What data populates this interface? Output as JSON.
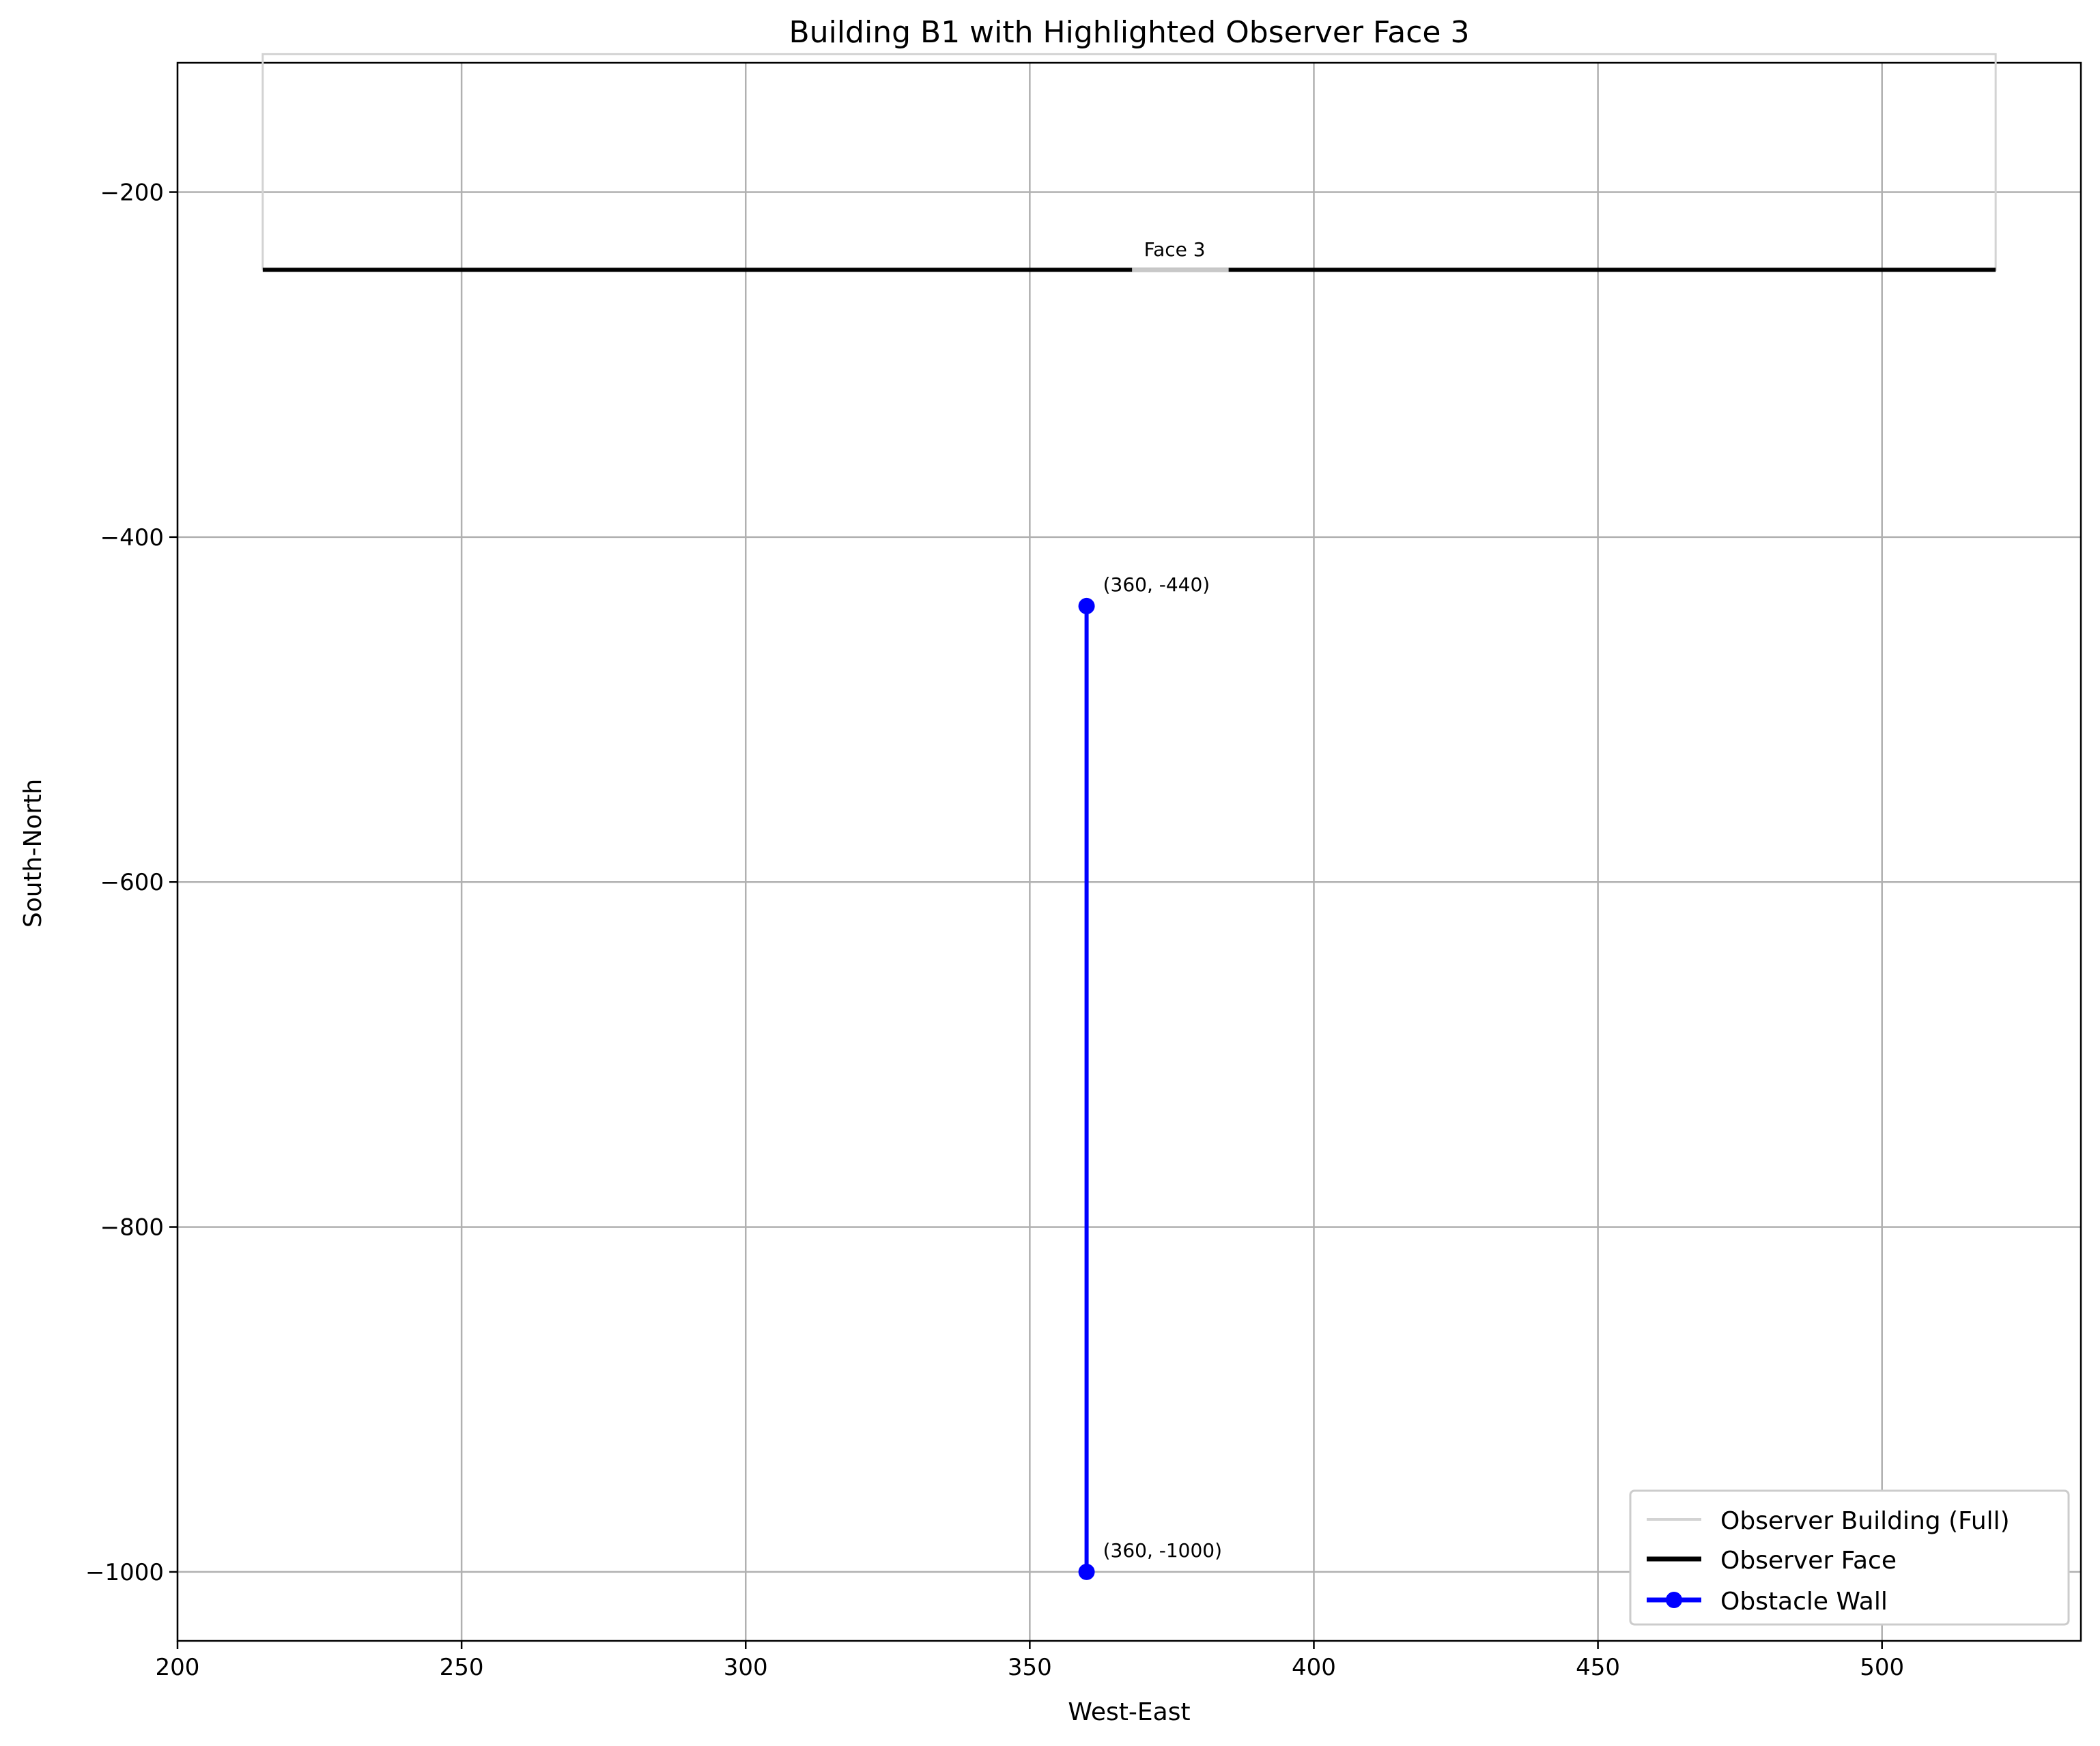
{
  "chart_data": {
    "type": "line",
    "title": "Building B1 with Highlighted Observer Face 3",
    "xlabel": "West-East",
    "ylabel": "South-North",
    "xlim": [
      200,
      535
    ],
    "ylim": [
      -1040,
      -125
    ],
    "xticks": [
      200,
      250,
      300,
      350,
      400,
      450,
      500
    ],
    "yticks": [
      -200,
      -400,
      -600,
      -800,
      -1000
    ],
    "grid": true,
    "legend_position": "lower right",
    "series": [
      {
        "name": "Observer Building (Full)",
        "color": "#d3d3d3",
        "points": [
          [
            215,
            -245
          ],
          [
            215,
            -120
          ],
          [
            520,
            -120
          ],
          [
            520,
            -245
          ],
          [
            215,
            -245
          ]
        ]
      },
      {
        "name": "Observer Face",
        "color": "#000000",
        "points": [
          [
            215,
            -245
          ],
          [
            520,
            -245
          ]
        ]
      },
      {
        "name": "Obstacle Wall",
        "color": "#0000ff",
        "marker": "circle",
        "points": [
          [
            360,
            -440
          ],
          [
            360,
            -1000
          ]
        ]
      }
    ],
    "annotations": [
      {
        "text": "Face 3",
        "x": 367.5,
        "y": -245
      },
      {
        "text": "(360, -440)",
        "x": 360,
        "y": -440
      },
      {
        "text": "(360, -1000)",
        "x": 360,
        "y": -1000
      }
    ]
  }
}
